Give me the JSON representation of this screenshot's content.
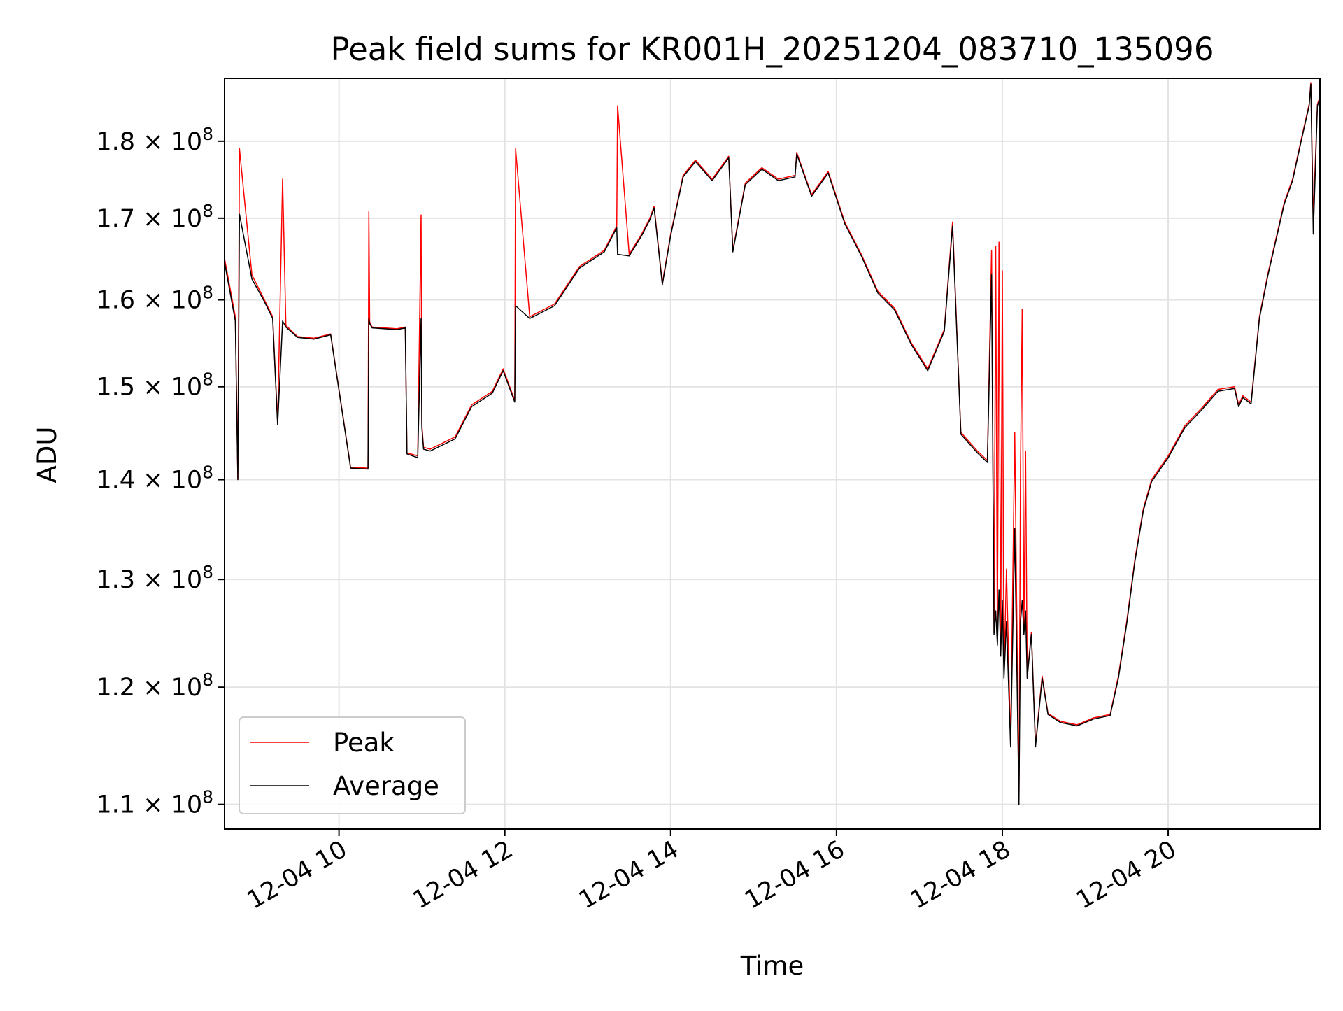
{
  "chart_data": {
    "type": "line",
    "title": "Peak field sums for KR001H_20251204_083710_135096",
    "xlabel": "Time",
    "ylabel": "ADU",
    "yscale": "log",
    "grid": true,
    "legend_position": "lower-left",
    "x_unit": "hours since 2025-12-04 00:00",
    "xlim": [
      8.62,
      21.83
    ],
    "ylim": [
      108000000,
      188600000
    ],
    "x_ticks": [
      {
        "value": 10,
        "label": "12-04 10"
      },
      {
        "value": 12,
        "label": "12-04 12"
      },
      {
        "value": 14,
        "label": "12-04 14"
      },
      {
        "value": 16,
        "label": "12-04 16"
      },
      {
        "value": 18,
        "label": "12-04 18"
      },
      {
        "value": 20,
        "label": "12-04 20"
      }
    ],
    "y_ticks": [
      {
        "value": 110000000,
        "mantissa": "1.1",
        "base": "10",
        "exponent": "8"
      },
      {
        "value": 120000000,
        "mantissa": "1.2",
        "base": "10",
        "exponent": "8"
      },
      {
        "value": 130000000,
        "mantissa": "1.3",
        "base": "10",
        "exponent": "8"
      },
      {
        "value": 140000000,
        "mantissa": "1.4",
        "base": "10",
        "exponent": "8"
      },
      {
        "value": 150000000,
        "mantissa": "1.5",
        "base": "10",
        "exponent": "8"
      },
      {
        "value": 160000000,
        "mantissa": "1.6",
        "base": "10",
        "exponent": "8"
      },
      {
        "value": 170000000,
        "mantissa": "1.7",
        "base": "10",
        "exponent": "8"
      },
      {
        "value": 180000000,
        "mantissa": "1.8",
        "base": "10",
        "exponent": "8"
      }
    ],
    "series": [
      {
        "name": "Peak",
        "color": "#ff0000",
        "x": [
          8.62,
          8.75,
          8.78,
          8.8,
          8.95,
          9.1,
          9.2,
          9.26,
          9.32,
          9.36,
          9.5,
          9.7,
          9.9,
          10.12,
          10.14,
          10.35,
          10.36,
          10.37,
          10.4,
          10.7,
          10.8,
          10.82,
          10.95,
          10.99,
          11.0,
          11.02,
          11.1,
          11.4,
          11.6,
          11.85,
          11.98,
          12.12,
          12.13,
          12.3,
          12.6,
          12.9,
          13.2,
          13.35,
          13.36,
          13.5,
          13.65,
          13.75,
          13.8,
          13.9,
          14.0,
          14.15,
          14.3,
          14.5,
          14.7,
          14.75,
          14.9,
          15.1,
          15.3,
          15.5,
          15.52,
          15.7,
          15.9,
          16.1,
          16.3,
          16.5,
          16.7,
          16.9,
          17.1,
          17.3,
          17.4,
          17.5,
          17.7,
          17.82,
          17.87,
          17.9,
          17.92,
          17.94,
          17.96,
          17.98,
          18.0,
          18.02,
          18.05,
          18.1,
          18.15,
          18.2,
          18.22,
          18.24,
          18.26,
          18.28,
          18.3,
          18.35,
          18.4,
          18.48,
          18.55,
          18.7,
          18.9,
          19.1,
          19.3,
          19.4,
          19.5,
          19.6,
          19.7,
          19.8,
          20.0,
          20.2,
          20.4,
          20.6,
          20.8,
          20.85,
          20.9,
          21.0,
          21.1,
          21.2,
          21.4,
          21.5,
          21.6,
          21.7,
          21.72,
          21.75,
          21.8,
          21.83
        ],
        "y": [
          165000000,
          158000000,
          140000000,
          179000000,
          163000000,
          160000000,
          158000000,
          146000000,
          175000000,
          157000000,
          155700000,
          155500000,
          156000000,
          142500000,
          141300000,
          141200000,
          170800000,
          157400000,
          156800000,
          156600000,
          156800000,
          142800000,
          142500000,
          170400000,
          145800000,
          143400000,
          143200000,
          144500000,
          148000000,
          149500000,
          152000000,
          148500000,
          179000000,
          158000000,
          159500000,
          164000000,
          166000000,
          169000000,
          184800000,
          165500000,
          168000000,
          170000000,
          171500000,
          162000000,
          168000000,
          175500000,
          177500000,
          175000000,
          178000000,
          166000000,
          174500000,
          176500000,
          175000000,
          175500000,
          178500000,
          173000000,
          176000000,
          169500000,
          165500000,
          161000000,
          159000000,
          155000000,
          152000000,
          156500000,
          169500000,
          145000000,
          143000000,
          142000000,
          166000000,
          125000000,
          166500000,
          124000000,
          167000000,
          123000000,
          163500000,
          121000000,
          131000000,
          115000000,
          145000000,
          110000000,
          141500000,
          158900000,
          125000000,
          143000000,
          121000000,
          125000000,
          115000000,
          121000000,
          117700000,
          117000000,
          116700000,
          117300000,
          117600000,
          121000000,
          126000000,
          132000000,
          137000000,
          140000000,
          142500000,
          145700000,
          147600000,
          149700000,
          150000000,
          148000000,
          149000000,
          148300000,
          158000000,
          163000000,
          172000000,
          175000000,
          180000000,
          185000000,
          188000000,
          170000000,
          185000000,
          186000000
        ]
      },
      {
        "name": "Average",
        "color": "#000000",
        "x": [
          8.62,
          8.75,
          8.78,
          8.8,
          8.95,
          9.1,
          9.2,
          9.26,
          9.32,
          9.36,
          9.5,
          9.7,
          9.9,
          10.12,
          10.14,
          10.35,
          10.36,
          10.37,
          10.4,
          10.7,
          10.8,
          10.82,
          10.95,
          10.99,
          11.0,
          11.02,
          11.1,
          11.4,
          11.6,
          11.85,
          11.98,
          12.12,
          12.13,
          12.3,
          12.6,
          12.9,
          13.2,
          13.35,
          13.36,
          13.5,
          13.65,
          13.75,
          13.8,
          13.9,
          14.0,
          14.15,
          14.3,
          14.5,
          14.7,
          14.75,
          14.9,
          15.1,
          15.3,
          15.5,
          15.52,
          15.7,
          15.9,
          16.1,
          16.3,
          16.5,
          16.7,
          16.9,
          17.1,
          17.3,
          17.4,
          17.5,
          17.7,
          17.82,
          17.87,
          17.9,
          17.92,
          17.94,
          17.96,
          17.98,
          18.0,
          18.02,
          18.05,
          18.1,
          18.15,
          18.2,
          18.22,
          18.24,
          18.26,
          18.28,
          18.3,
          18.35,
          18.4,
          18.48,
          18.55,
          18.7,
          18.9,
          19.1,
          19.3,
          19.4,
          19.5,
          19.6,
          19.7,
          19.8,
          20.0,
          20.2,
          20.4,
          20.6,
          20.8,
          20.85,
          20.9,
          21.0,
          21.1,
          21.2,
          21.4,
          21.5,
          21.6,
          21.7,
          21.72,
          21.75,
          21.8,
          21.83
        ],
        "y": [
          164500000,
          157500000,
          140000000,
          170500000,
          162500000,
          159800000,
          157800000,
          145800000,
          157500000,
          156800000,
          155600000,
          155400000,
          155900000,
          142400000,
          141200000,
          141100000,
          157800000,
          157200000,
          156700000,
          156500000,
          156700000,
          142700000,
          142300000,
          157800000,
          145500000,
          143200000,
          143000000,
          144300000,
          147800000,
          149300000,
          151800000,
          148300000,
          159300000,
          157800000,
          159300000,
          163800000,
          165800000,
          168800000,
          165500000,
          165300000,
          167800000,
          169800000,
          171300000,
          161800000,
          167800000,
          175300000,
          177300000,
          174800000,
          177800000,
          165800000,
          174300000,
          176300000,
          174800000,
          175300000,
          178300000,
          172800000,
          175800000,
          169300000,
          165300000,
          160800000,
          158800000,
          154800000,
          151800000,
          156300000,
          169000000,
          144800000,
          142800000,
          141800000,
          163000000,
          124800000,
          127000000,
          123800000,
          129000000,
          122800000,
          128000000,
          120800000,
          126000000,
          114800000,
          135000000,
          110000000,
          126000000,
          128000000,
          124800000,
          127000000,
          120800000,
          124800000,
          114800000,
          120800000,
          117600000,
          116900000,
          116600000,
          117200000,
          117500000,
          120800000,
          125800000,
          131800000,
          136800000,
          139800000,
          142300000,
          145500000,
          147400000,
          149500000,
          149800000,
          147800000,
          148800000,
          148100000,
          157800000,
          162800000,
          171800000,
          174800000,
          179800000,
          184800000,
          187800000,
          168000000,
          184800000,
          185800000
        ]
      }
    ]
  }
}
